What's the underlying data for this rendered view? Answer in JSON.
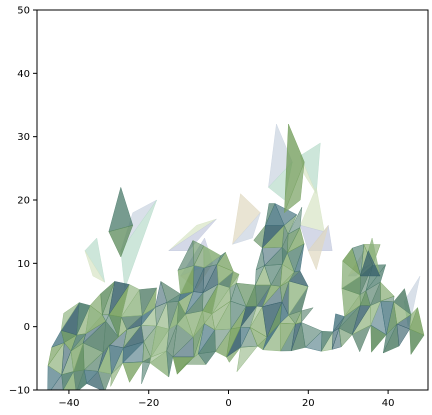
{
  "chart_data": {
    "type": "3d-triangulated-surface",
    "title": "",
    "xlabel": "",
    "ylabel": "",
    "xlim": [
      -48,
      50
    ],
    "ylim": [
      -10,
      50
    ],
    "xticks": [
      -40,
      -20,
      0,
      20,
      40
    ],
    "yticks": [
      -10,
      0,
      10,
      20,
      30,
      40,
      50
    ],
    "xtick_labels": [
      "−40",
      "−20",
      "0",
      "20",
      "40"
    ],
    "ytick_labels": [
      "−10",
      "0",
      "10",
      "20",
      "30",
      "40",
      "50"
    ],
    "grid": false,
    "legend": "none",
    "palette": [
      "#4a7a6a",
      "#5b8a5a",
      "#3f6e7a",
      "#6e9a55",
      "#7fa66a",
      "#55806a",
      "#8ab07a",
      "#365f6a"
    ],
    "light_palette": [
      "#c9d3e0",
      "#b8dccb",
      "#d7e4c4",
      "#c2c8dd",
      "#e0d8c0"
    ],
    "main_mass": [
      [
        -45,
        -9
      ],
      [
        -42,
        2
      ],
      [
        -33,
        4
      ],
      [
        -30,
        7
      ],
      [
        -24,
        6
      ],
      [
        -18,
        4
      ],
      [
        -12,
        8
      ],
      [
        -10,
        12
      ],
      [
        -6,
        14
      ],
      [
        0,
        12
      ],
      [
        5,
        6
      ],
      [
        8,
        10
      ],
      [
        8,
        16
      ],
      [
        10,
        19
      ],
      [
        14,
        18
      ],
      [
        18,
        16
      ],
      [
        20,
        12
      ],
      [
        19,
        4
      ],
      [
        21,
        -1
      ],
      [
        24,
        -1
      ],
      [
        28,
        2
      ],
      [
        30,
        5
      ],
      [
        29,
        9
      ],
      [
        33,
        12
      ],
      [
        36,
        12
      ],
      [
        38,
        7
      ],
      [
        44,
        4
      ],
      [
        48,
        1
      ],
      [
        50,
        0
      ],
      [
        50,
        -2
      ],
      [
        20,
        -3
      ],
      [
        0,
        -5
      ],
      [
        -20,
        -7
      ],
      [
        -38,
        -9.5
      ],
      [
        -48,
        -10
      ]
    ],
    "faint_patches": [
      [
        [
          -27,
          12
        ],
        [
          -24,
          18
        ],
        [
          -18,
          20
        ],
        [
          -26,
          6
        ]
      ],
      [
        [
          -36,
          12
        ],
        [
          -33,
          14
        ],
        [
          -31,
          7
        ],
        [
          -34,
          8
        ]
      ],
      [
        [
          -15,
          12
        ],
        [
          -8,
          16
        ],
        [
          -3,
          17
        ],
        [
          -10,
          12
        ]
      ],
      [
        [
          -12,
          8
        ],
        [
          -6,
          14
        ],
        [
          -4,
          10
        ],
        [
          -8,
          6
        ]
      ],
      [
        [
          1,
          13
        ],
        [
          3,
          21
        ],
        [
          8,
          18
        ],
        [
          6,
          14
        ]
      ],
      [
        [
          10,
          22
        ],
        [
          12,
          32
        ],
        [
          16,
          26
        ],
        [
          14,
          20
        ]
      ],
      [
        [
          18,
          27
        ],
        [
          23,
          29
        ],
        [
          22,
          21
        ],
        [
          19,
          24
        ]
      ],
      [
        [
          18,
          16
        ],
        [
          22,
          22
        ],
        [
          24,
          15
        ],
        [
          20,
          12
        ]
      ],
      [
        [
          20,
          12
        ],
        [
          26,
          12
        ],
        [
          25,
          16
        ],
        [
          22,
          9
        ]
      ],
      [
        [
          30,
          8
        ],
        [
          34,
          12
        ],
        [
          32,
          8
        ],
        [
          36,
          10
        ]
      ],
      [
        [
          44,
          4
        ],
        [
          48,
          8
        ],
        [
          46,
          2
        ],
        [
          45,
          0
        ]
      ]
    ],
    "spires": [
      [
        [
          -30,
          15
        ],
        [
          -27,
          22
        ],
        [
          -24,
          16
        ],
        [
          -27,
          11
        ]
      ],
      [
        [
          14,
          18
        ],
        [
          15,
          32
        ],
        [
          19,
          26
        ],
        [
          18,
          20
        ]
      ],
      [
        [
          35,
          12
        ],
        [
          36,
          14
        ],
        [
          38,
          8
        ],
        [
          33,
          8
        ]
      ]
    ]
  }
}
